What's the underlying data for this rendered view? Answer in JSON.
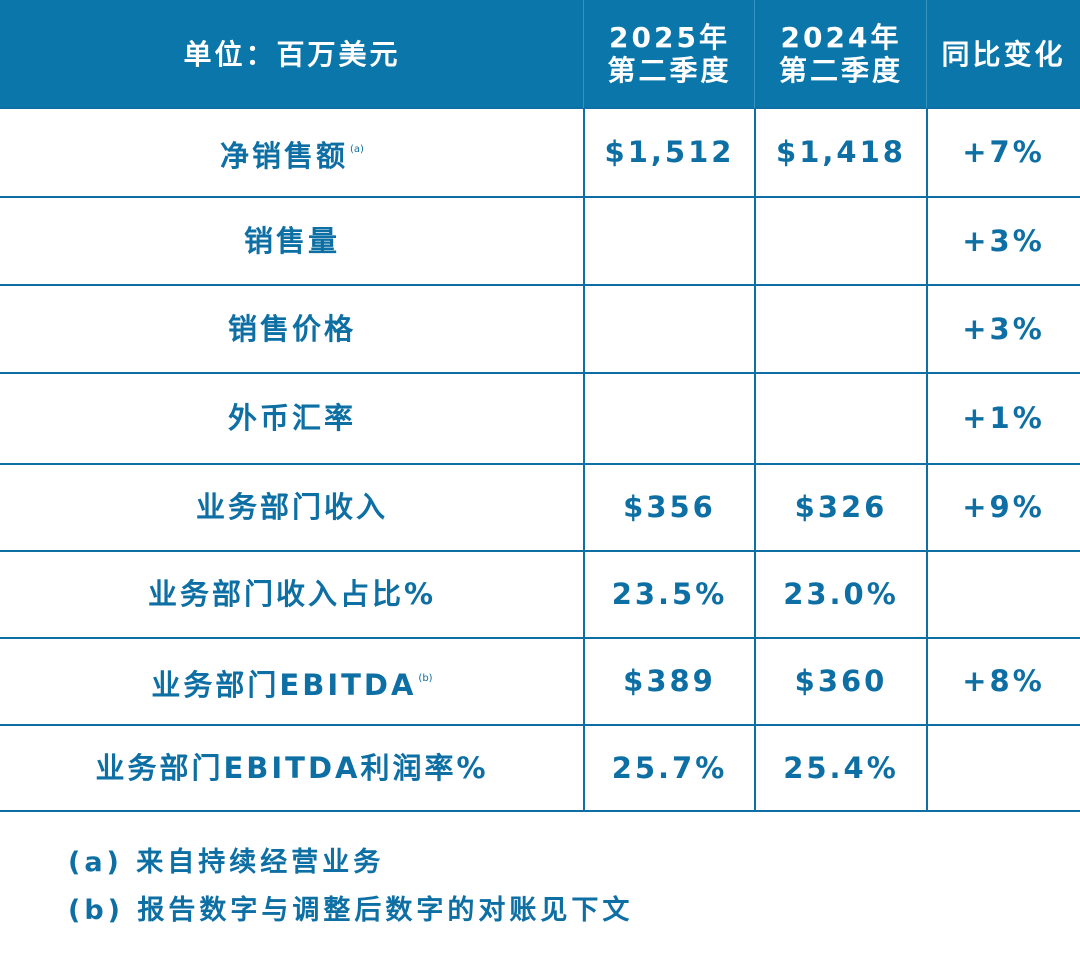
{
  "table": {
    "header": {
      "label": "单位：百万美元",
      "columns": [
        [
          "2025年",
          "第二季度"
        ],
        [
          "2024年",
          "第二季度"
        ],
        [
          "同比变化"
        ]
      ]
    },
    "rows": [
      {
        "label": "净销售额",
        "note": "(a)",
        "cells": [
          "$1,512",
          "$1,418",
          "+7%"
        ]
      },
      {
        "label": "销售量",
        "cells": [
          null,
          null,
          "+3%"
        ]
      },
      {
        "label": "销售价格",
        "cells": [
          null,
          null,
          "+3%"
        ]
      },
      {
        "label": "外币汇率",
        "cells": [
          null,
          null,
          "+1%"
        ]
      },
      {
        "label": "业务部门收入",
        "cells": [
          "$356",
          "$326",
          "+9%"
        ]
      },
      {
        "label": "业务部门收入占比%",
        "cells": [
          "23.5%",
          "23.0%",
          null
        ]
      },
      {
        "label": "业务部门EBITDA",
        "note": "(b)",
        "cells": [
          "$389",
          "$360",
          "+8%"
        ]
      },
      {
        "label": "业务部门EBITDA利润率%",
        "cells": [
          "25.7%",
          "25.4%",
          null
        ]
      }
    ]
  },
  "footnotes": [
    "(a) 来自持续经营业务",
    "(b) 报告数字与调整后数字的对账见下文"
  ]
}
